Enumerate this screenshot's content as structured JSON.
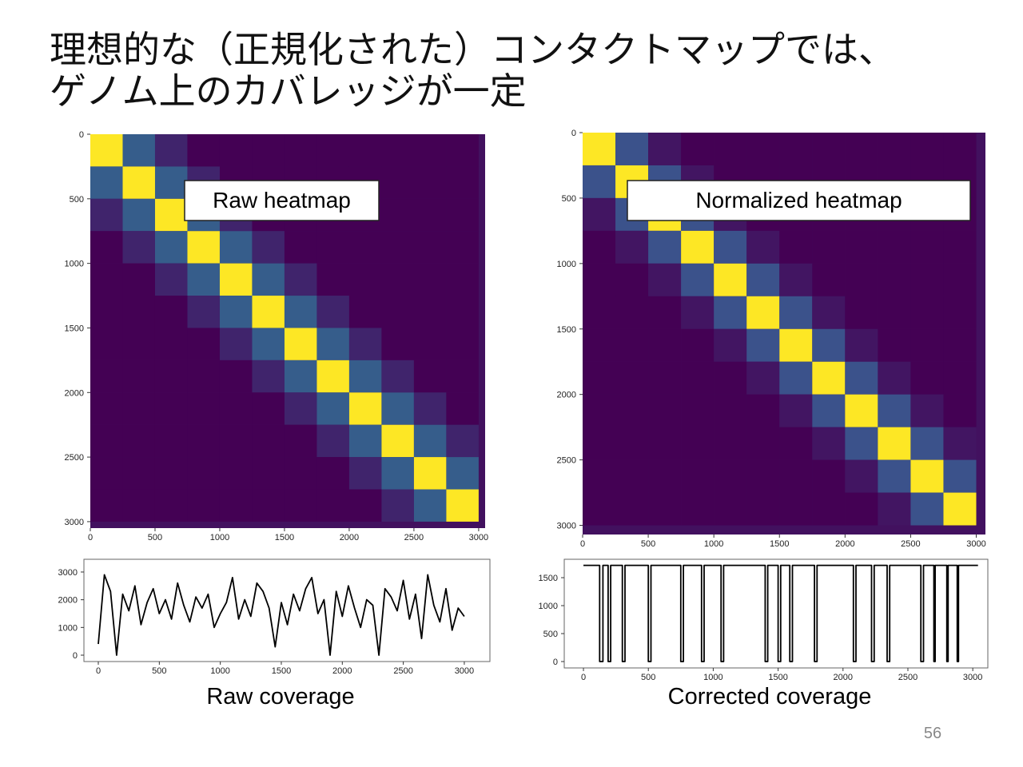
{
  "title": [
    "理想的な（正規化された）コンタクトマップでは、",
    "ゲノム上のカバレッジが一定"
  ],
  "page_number": "56",
  "chart_data": [
    {
      "type": "heatmap",
      "label": "Raw heatmap",
      "colormap": "viridis",
      "xlim": [
        0,
        3050
      ],
      "ylim": [
        3050,
        0
      ],
      "xticks": [
        0,
        500,
        1000,
        1500,
        2000,
        2500,
        3000
      ],
      "yticks": [
        0,
        500,
        1000,
        1500,
        2000,
        2500,
        3000
      ],
      "x_edges": [
        0,
        250,
        500,
        750,
        1000,
        1250,
        1500,
        1750,
        2000,
        2250,
        2500,
        2750,
        3000
      ],
      "y_edges": [
        0,
        250,
        500,
        750,
        1000,
        1250,
        1500,
        1750,
        2000,
        2250,
        2500,
        2750,
        3000
      ],
      "values": [
        [
          1,
          0.35,
          0.18,
          0.08,
          0.08,
          0.08,
          0.08,
          0.08,
          0.08,
          0.08,
          0.08,
          0.08
        ],
        [
          0.35,
          1,
          0.35,
          0.18,
          0.08,
          0.08,
          0.08,
          0.08,
          0.08,
          0.08,
          0.08,
          0.08
        ],
        [
          0.18,
          0.35,
          1,
          0.35,
          0.18,
          0.08,
          0.08,
          0.08,
          0.08,
          0.08,
          0.08,
          0.08
        ],
        [
          0.08,
          0.18,
          0.35,
          1,
          0.35,
          0.18,
          0.08,
          0.08,
          0.08,
          0.08,
          0.08,
          0.08
        ],
        [
          0.08,
          0.08,
          0.18,
          0.35,
          1,
          0.35,
          0.18,
          0.08,
          0.08,
          0.08,
          0.08,
          0.08
        ],
        [
          0.08,
          0.08,
          0.08,
          0.18,
          0.35,
          1,
          0.35,
          0.18,
          0.08,
          0.08,
          0.08,
          0.08
        ],
        [
          0.08,
          0.08,
          0.08,
          0.08,
          0.18,
          0.35,
          1,
          0.35,
          0.18,
          0.08,
          0.08,
          0.08
        ],
        [
          0.08,
          0.08,
          0.08,
          0.08,
          0.08,
          0.18,
          0.35,
          1,
          0.35,
          0.18,
          0.08,
          0.08
        ],
        [
          0.08,
          0.08,
          0.08,
          0.08,
          0.08,
          0.08,
          0.18,
          0.35,
          1,
          0.35,
          0.18,
          0.08
        ],
        [
          0.08,
          0.08,
          0.08,
          0.08,
          0.08,
          0.08,
          0.08,
          0.18,
          0.35,
          1,
          0.35,
          0.18
        ],
        [
          0.08,
          0.08,
          0.08,
          0.08,
          0.08,
          0.08,
          0.08,
          0.08,
          0.18,
          0.35,
          1,
          0.35
        ],
        [
          0.08,
          0.08,
          0.08,
          0.08,
          0.08,
          0.08,
          0.08,
          0.08,
          0.08,
          0.18,
          0.35,
          1
        ]
      ]
    },
    {
      "type": "heatmap",
      "label": "Normalized heatmap",
      "colormap": "viridis",
      "xlim": [
        0,
        3070
      ],
      "ylim": [
        3070,
        0
      ],
      "xticks": [
        0,
        500,
        1000,
        1500,
        2000,
        2500,
        3000
      ],
      "yticks": [
        0,
        500,
        1000,
        1500,
        2000,
        2500,
        3000
      ],
      "x_edges": [
        0,
        250,
        500,
        750,
        1000,
        1250,
        1500,
        1750,
        2000,
        2250,
        2500,
        2750,
        3000
      ],
      "y_edges": [
        0,
        250,
        500,
        750,
        1000,
        1250,
        1500,
        1750,
        2000,
        2250,
        2500,
        2750,
        3000
      ],
      "values": [
        [
          0.9,
          0.3,
          0.15,
          0.1,
          0.1,
          0.1,
          0.1,
          0.1,
          0.1,
          0.1,
          0.1,
          0.1
        ],
        [
          0.3,
          0.9,
          0.3,
          0.15,
          0.1,
          0.1,
          0.1,
          0.1,
          0.1,
          0.1,
          0.1,
          0.1
        ],
        [
          0.15,
          0.3,
          0.9,
          0.3,
          0.15,
          0.1,
          0.1,
          0.1,
          0.1,
          0.1,
          0.1,
          0.1
        ],
        [
          0.1,
          0.15,
          0.3,
          0.9,
          0.3,
          0.15,
          0.1,
          0.1,
          0.1,
          0.1,
          0.1,
          0.1
        ],
        [
          0.1,
          0.1,
          0.15,
          0.3,
          0.9,
          0.3,
          0.15,
          0.1,
          0.1,
          0.1,
          0.1,
          0.1
        ],
        [
          0.1,
          0.1,
          0.1,
          0.15,
          0.3,
          0.9,
          0.3,
          0.15,
          0.1,
          0.1,
          0.1,
          0.1
        ],
        [
          0.1,
          0.1,
          0.1,
          0.1,
          0.15,
          0.3,
          0.9,
          0.3,
          0.15,
          0.1,
          0.1,
          0.1
        ],
        [
          0.1,
          0.1,
          0.1,
          0.1,
          0.1,
          0.15,
          0.3,
          0.9,
          0.3,
          0.15,
          0.1,
          0.1
        ],
        [
          0.1,
          0.1,
          0.1,
          0.1,
          0.1,
          0.1,
          0.15,
          0.3,
          0.9,
          0.3,
          0.15,
          0.1
        ],
        [
          0.1,
          0.1,
          0.1,
          0.1,
          0.1,
          0.1,
          0.1,
          0.15,
          0.3,
          0.9,
          0.3,
          0.15
        ],
        [
          0.1,
          0.1,
          0.1,
          0.1,
          0.1,
          0.1,
          0.1,
          0.1,
          0.15,
          0.3,
          0.9,
          0.3
        ],
        [
          0.1,
          0.1,
          0.1,
          0.1,
          0.1,
          0.1,
          0.1,
          0.1,
          0.1,
          0.15,
          0.3,
          0.9
        ]
      ]
    },
    {
      "type": "line",
      "caption": "Raw coverage",
      "color": "#000000",
      "xlim": [
        -118,
        3210
      ],
      "ylim": [
        -230,
        3460
      ],
      "xticks": [
        0,
        500,
        1000,
        1500,
        2000,
        2500,
        3000
      ],
      "yticks": [
        0,
        1000,
        2000,
        3000
      ],
      "x": [
        0,
        50,
        100,
        150,
        200,
        250,
        300,
        350,
        400,
        450,
        500,
        550,
        600,
        650,
        700,
        750,
        800,
        850,
        900,
        950,
        1000,
        1050,
        1100,
        1150,
        1200,
        1250,
        1300,
        1350,
        1400,
        1450,
        1500,
        1550,
        1600,
        1650,
        1700,
        1750,
        1800,
        1850,
        1900,
        1950,
        2000,
        2050,
        2100,
        2150,
        2200,
        2250,
        2300,
        2350,
        2400,
        2450,
        2500,
        2550,
        2600,
        2650,
        2700,
        2750,
        2800,
        2850,
        2900,
        2950,
        3000
      ],
      "values": [
        400,
        2900,
        2300,
        0,
        2200,
        1600,
        2500,
        1100,
        1900,
        2400,
        1500,
        2000,
        1300,
        2600,
        1800,
        1200,
        2100,
        1700,
        2200,
        1000,
        1500,
        1900,
        2800,
        1300,
        2000,
        1400,
        2600,
        2300,
        1700,
        300,
        1900,
        1100,
        2200,
        1600,
        2400,
        2800,
        1500,
        2000,
        0,
        2300,
        1400,
        2500,
        1700,
        1000,
        2000,
        1800,
        0,
        2400,
        2100,
        1600,
        2700,
        1300,
        2200,
        600,
        2900,
        1800,
        1200,
        2400,
        900,
        1700,
        1400
      ]
    },
    {
      "type": "line",
      "caption": "Corrected coverage",
      "color": "#000000",
      "xlim": [
        -148,
        3116
      ],
      "ylim": [
        -114,
        1829
      ],
      "xticks": [
        0,
        500,
        1000,
        1500,
        2000,
        2500,
        3000
      ],
      "yticks": [
        0,
        500,
        1000,
        1500
      ],
      "x": [
        0,
        125,
        125,
        150,
        150,
        190,
        190,
        210,
        210,
        300,
        300,
        320,
        320,
        500,
        500,
        520,
        520,
        750,
        750,
        770,
        770,
        910,
        910,
        930,
        930,
        1060,
        1060,
        1080,
        1080,
        1400,
        1400,
        1420,
        1420,
        1500,
        1500,
        1520,
        1520,
        1590,
        1590,
        1610,
        1610,
        1780,
        1780,
        1800,
        1800,
        2080,
        2080,
        2100,
        2100,
        2220,
        2220,
        2240,
        2240,
        2340,
        2340,
        2360,
        2360,
        2600,
        2600,
        2620,
        2620,
        2700,
        2700,
        2710,
        2710,
        2800,
        2800,
        2810,
        2810,
        2880,
        2880,
        2890,
        2890,
        3040
      ],
      "values": [
        1720,
        1720,
        0,
        0,
        1720,
        1720,
        0,
        0,
        1720,
        1720,
        0,
        0,
        1720,
        1720,
        0,
        0,
        1720,
        1720,
        0,
        0,
        1720,
        1720,
        0,
        0,
        1720,
        1720,
        0,
        0,
        1720,
        1720,
        0,
        0,
        1720,
        1720,
        0,
        0,
        1720,
        1720,
        0,
        0,
        1720,
        1720,
        0,
        0,
        1720,
        1720,
        0,
        0,
        1720,
        1720,
        0,
        0,
        1720,
        1720,
        0,
        0,
        1720,
        1720,
        0,
        0,
        1720,
        1720,
        0,
        0,
        1720,
        1720,
        0,
        0,
        1720,
        1720,
        0,
        0,
        1720,
        1720
      ]
    }
  ]
}
